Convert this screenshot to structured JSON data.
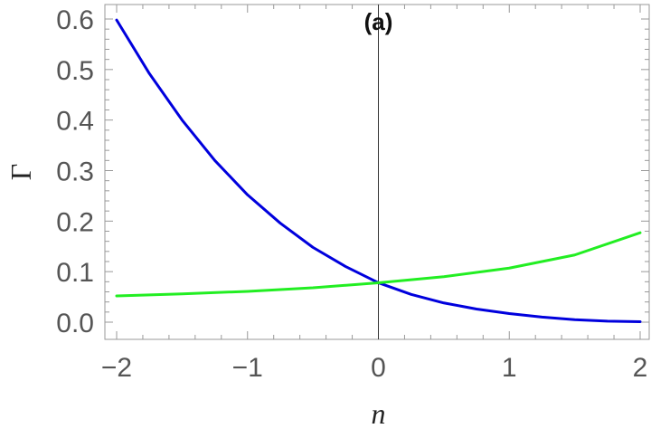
{
  "chart_data": {
    "type": "line",
    "annotation": "(a)",
    "xlabel": "n",
    "ylabel": "Γ",
    "xlim": [
      -2,
      2
    ],
    "ylim": [
      0,
      0.6
    ],
    "xticks": [
      -2,
      -1,
      0,
      1,
      2
    ],
    "xtick_labels": [
      "−2",
      "−1",
      "0",
      "1",
      "2"
    ],
    "yticks": [
      0.0,
      0.1,
      0.2,
      0.3,
      0.4,
      0.5,
      0.6
    ],
    "ytick_labels": [
      "0.0",
      "0.1",
      "0.2",
      "0.3",
      "0.4",
      "0.5",
      "0.6"
    ],
    "grid": false,
    "series": [
      {
        "color": "#0000dd",
        "x": [
          -2,
          -1.75,
          -1.5,
          -1.25,
          -1,
          -0.75,
          -0.5,
          -0.25,
          0,
          0.25,
          0.5,
          0.75,
          1,
          1.25,
          1.5,
          1.75,
          2
        ],
        "y": [
          0.598,
          0.492,
          0.4,
          0.32,
          0.252,
          0.196,
          0.148,
          0.11,
          0.078,
          0.055,
          0.038,
          0.026,
          0.017,
          0.01,
          0.005,
          0.002,
          0.001
        ]
      },
      {
        "color": "#22ee22",
        "x": [
          -2,
          -1.5,
          -1,
          -0.5,
          0,
          0.5,
          1,
          1.5,
          2
        ],
        "y": [
          0.052,
          0.056,
          0.061,
          0.068,
          0.078,
          0.09,
          0.107,
          0.133,
          0.177
        ]
      }
    ]
  }
}
